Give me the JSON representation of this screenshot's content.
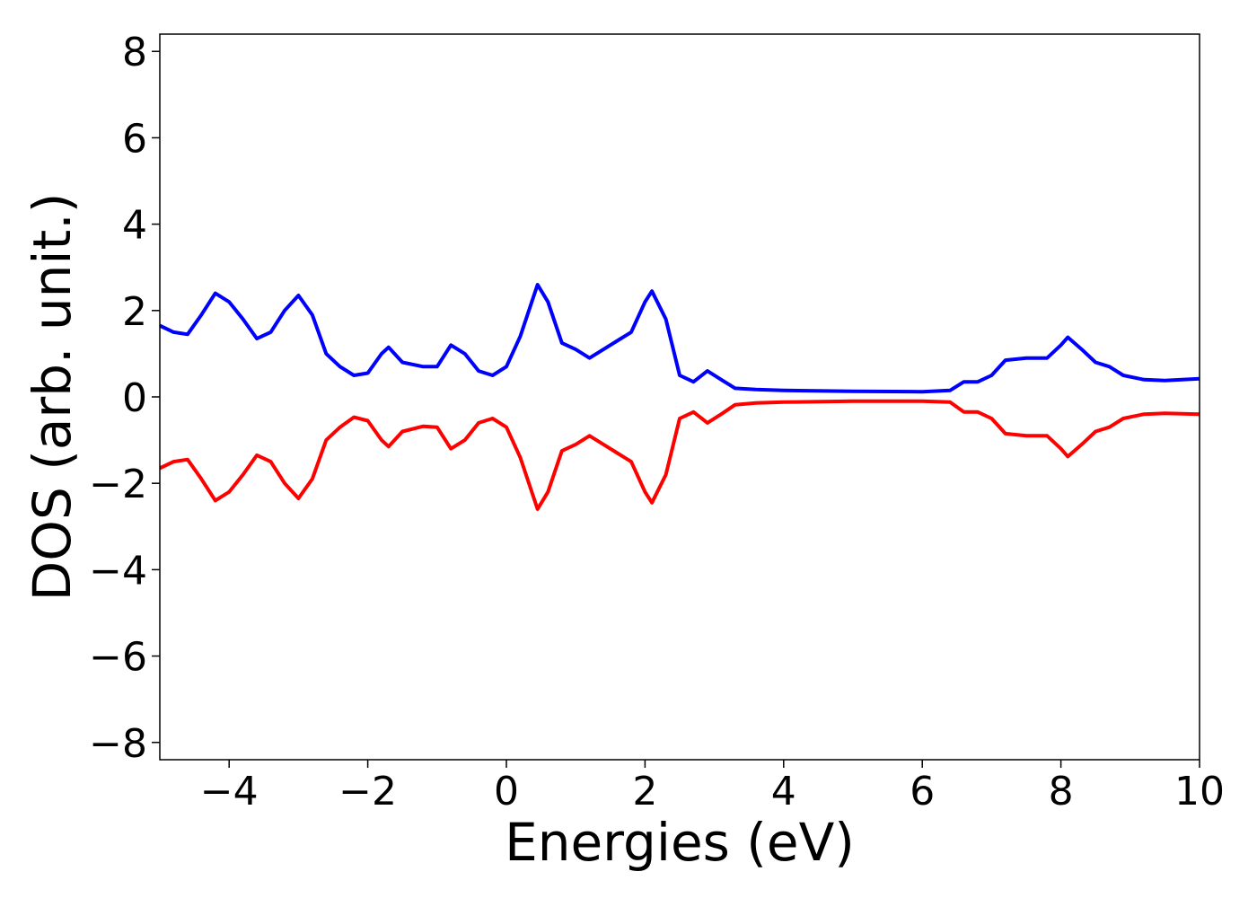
{
  "chart_data": {
    "type": "line",
    "x_label": "Energies (eV)",
    "y_label": "DOS (arb. unit.)",
    "x": [
      -5,
      -4.8,
      -4.6,
      -4.4,
      -4.2,
      -4.0,
      -3.8,
      -3.6,
      -3.4,
      -3.2,
      -3.0,
      -2.8,
      -2.6,
      -2.4,
      -2.2,
      -2.0,
      -1.8,
      -1.7,
      -1.5,
      -1.2,
      -1.0,
      -0.8,
      -0.6,
      -0.4,
      -0.2,
      0,
      0.2,
      0.45,
      0.6,
      0.8,
      1.0,
      1.2,
      1.4,
      1.6,
      1.8,
      2.0,
      2.1,
      2.3,
      2.5,
      2.7,
      2.9,
      3.1,
      3.3,
      3.6,
      4,
      5,
      6,
      6.4,
      6.6,
      6.8,
      7.0,
      7.2,
      7.5,
      7.8,
      8.0,
      8.1,
      8.3,
      8.5,
      8.7,
      8.9,
      9.2,
      9.5,
      10
    ],
    "series": [
      {
        "color": "#0000ff",
        "values": [
          1.65,
          1.5,
          1.45,
          1.9,
          2.4,
          2.2,
          1.8,
          1.35,
          1.5,
          2.0,
          2.35,
          1.9,
          1.0,
          0.7,
          0.5,
          0.55,
          1.0,
          1.15,
          0.8,
          0.7,
          0.7,
          1.2,
          1.0,
          0.6,
          0.5,
          0.7,
          1.4,
          2.6,
          2.2,
          1.25,
          1.1,
          0.9,
          1.1,
          1.3,
          1.5,
          2.2,
          2.45,
          1.8,
          0.5,
          0.35,
          0.6,
          0.4,
          0.2,
          0.17,
          0.15,
          0.13,
          0.12,
          0.15,
          0.35,
          0.35,
          0.5,
          0.85,
          0.9,
          0.9,
          1.2,
          1.38,
          1.1,
          0.8,
          0.7,
          0.5,
          0.4,
          0.38,
          0.42
        ]
      },
      {
        "color": "#ff0000",
        "values": [
          -1.65,
          -1.5,
          -1.45,
          -1.9,
          -2.4,
          -2.2,
          -1.8,
          -1.35,
          -1.5,
          -2.0,
          -2.35,
          -1.9,
          -1.0,
          -0.7,
          -0.47,
          -0.55,
          -1.0,
          -1.15,
          -0.8,
          -0.68,
          -0.7,
          -1.2,
          -1.0,
          -0.6,
          -0.5,
          -0.7,
          -1.4,
          -2.6,
          -2.2,
          -1.25,
          -1.1,
          -0.9,
          -1.1,
          -1.3,
          -1.5,
          -2.2,
          -2.45,
          -1.8,
          -0.5,
          -0.35,
          -0.6,
          -0.4,
          -0.18,
          -0.14,
          -0.12,
          -0.1,
          -0.1,
          -0.12,
          -0.35,
          -0.35,
          -0.5,
          -0.85,
          -0.9,
          -0.9,
          -1.2,
          -1.38,
          -1.1,
          -0.8,
          -0.7,
          -0.5,
          -0.4,
          -0.38,
          -0.4
        ]
      }
    ],
    "xlim": [
      -5,
      10
    ],
    "ylim": [
      -8.4,
      8.4
    ],
    "xticks": [
      {
        "value": -4,
        "label": "−4"
      },
      {
        "value": -2,
        "label": "−2"
      },
      0,
      2,
      4,
      6,
      8,
      10
    ],
    "yticks": [
      {
        "value": -8,
        "label": "−8"
      },
      {
        "value": -6,
        "label": "−6"
      },
      {
        "value": -4,
        "label": "−4"
      },
      {
        "value": -2,
        "label": "−2"
      },
      0,
      2,
      4,
      6,
      8
    ],
    "grid": false
  }
}
